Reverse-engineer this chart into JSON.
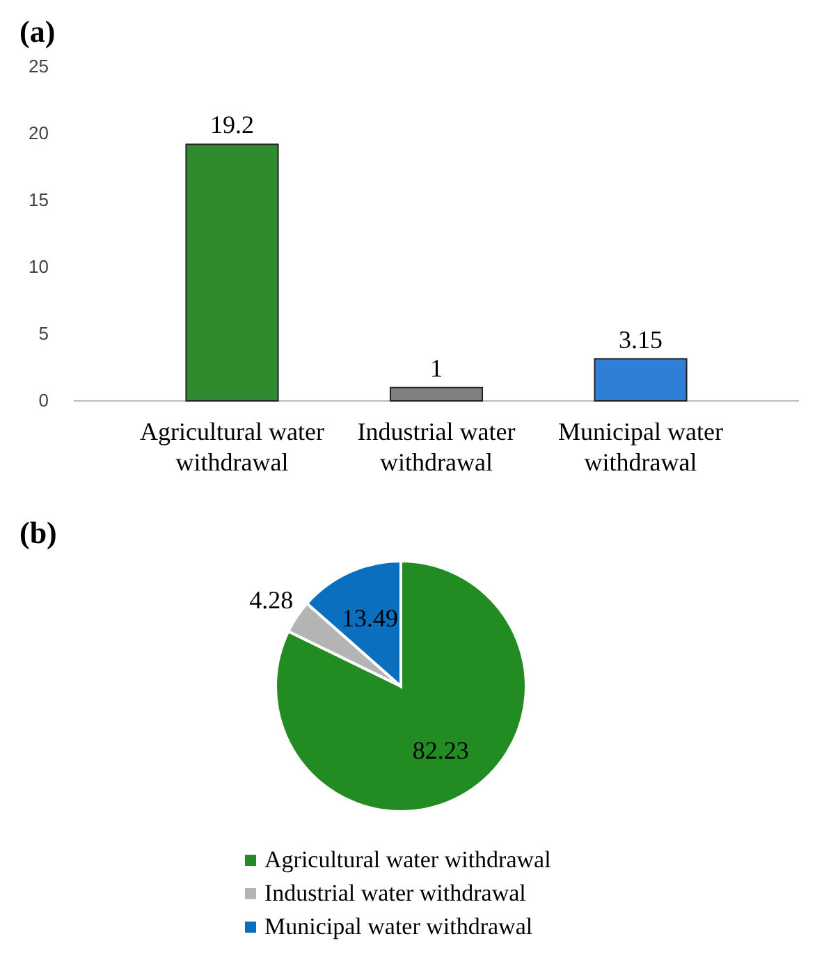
{
  "chart_data": [
    {
      "type": "bar",
      "title": "(a)",
      "categories": [
        "Agricultural water withdrawal",
        "Industrial water withdrawal",
        "Municipal water withdrawal"
      ],
      "values": [
        19.2,
        1,
        3.15
      ],
      "colors": [
        "#2e8b2e",
        "#808080",
        "#2f7fd6"
      ],
      "ylim": [
        0,
        25
      ],
      "yticks": [
        0,
        5,
        10,
        15,
        20,
        25
      ],
      "data_labels": true,
      "grid": false
    },
    {
      "type": "pie",
      "title": "(b)",
      "categories": [
        "Agricultural water withdrawal",
        "Industrial water withdrawal",
        "Municipal water withdrawal"
      ],
      "values": [
        82.23,
        4.28,
        13.49
      ],
      "colors": [
        "#228b22",
        "#b4b4b4",
        "#0b6fc0"
      ],
      "data_labels": true,
      "legend": "bottom"
    }
  ]
}
